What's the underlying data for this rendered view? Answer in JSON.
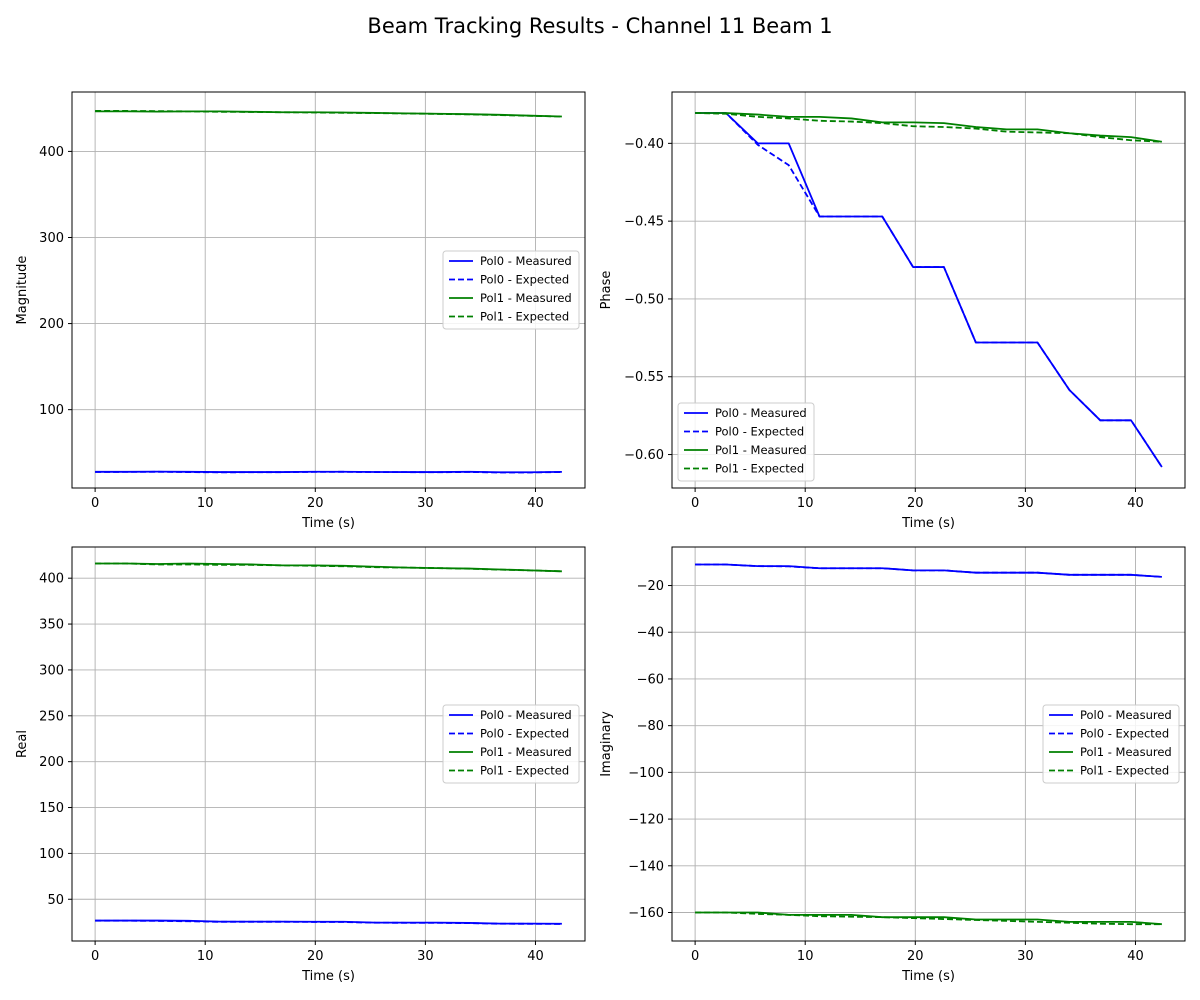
{
  "title": "Beam Tracking Results - Channel 11 Beam 1",
  "series_styles": [
    {
      "name": "Pol0 - Measured",
      "color": "#0000ff",
      "dash": "solid"
    },
    {
      "name": "Pol0 - Expected",
      "color": "#0000ff",
      "dash": "dashed"
    },
    {
      "name": "Pol1 - Measured",
      "color": "#008000",
      "dash": "solid"
    },
    {
      "name": "Pol1 - Expected",
      "color": "#008000",
      "dash": "dashed"
    }
  ],
  "chart_data": [
    {
      "id": "magnitude",
      "type": "line",
      "xlabel": "Time (s)",
      "ylabel": "Magnitude",
      "xlim": [
        -2.1,
        44.5
      ],
      "ylim": [
        9,
        469
      ],
      "xticks": [
        0,
        10,
        20,
        30,
        40
      ],
      "yticks": [
        100,
        200,
        300,
        400
      ],
      "grid": true,
      "legend": "center-right",
      "series": [
        {
          "name": "Pol0 - Measured",
          "x": [
            0,
            2.8,
            5.7,
            8.5,
            11.3,
            14.2,
            17,
            19.8,
            22.6,
            25.5,
            28.3,
            31.1,
            34,
            36.8,
            39.6,
            42.4
          ],
          "y": [
            27.8,
            27.8,
            28,
            27.8,
            27.5,
            27.5,
            27.5,
            27.9,
            27.9,
            27.6,
            27.5,
            27.5,
            27.9,
            27.3,
            27.3,
            27.7
          ]
        },
        {
          "name": "Pol0 - Expected",
          "x": [
            0,
            2.8,
            5.7,
            8.5,
            11.3,
            14.2,
            17,
            19.8,
            22.6,
            25.5,
            28.3,
            31.1,
            34,
            36.8,
            39.6,
            42.4
          ],
          "y": [
            27.6,
            27.7,
            27.8,
            27.5,
            27.2,
            27.3,
            27.4,
            27.7,
            27.8,
            27.5,
            27.4,
            27.3,
            27.6,
            27,
            27.1,
            27.5
          ]
        },
        {
          "name": "Pol1 - Measured",
          "x": [
            0,
            2.8,
            5.7,
            8.5,
            11.3,
            14.2,
            17,
            19.8,
            22.6,
            25.5,
            28.3,
            31.1,
            34,
            36.8,
            39.6,
            42.4
          ],
          "y": [
            446.5,
            446.5,
            446.2,
            446.5,
            446.5,
            446,
            445.5,
            445.5,
            445.2,
            444.7,
            444.2,
            443.7,
            443.2,
            442.5,
            441.5,
            440.5
          ]
        },
        {
          "name": "Pol1 - Expected",
          "x": [
            0,
            2.8,
            5.7,
            8.5,
            11.3,
            14.2,
            17,
            19.8,
            22.6,
            25.5,
            28.3,
            31.1,
            34,
            36.8,
            39.6,
            42.4
          ],
          "y": [
            447,
            447,
            446.8,
            446.5,
            446,
            445.8,
            445.5,
            445.2,
            444.8,
            444.5,
            444,
            443.5,
            443,
            442.2,
            441.3,
            440.5
          ]
        }
      ]
    },
    {
      "id": "phase",
      "type": "line",
      "xlabel": "Time (s)",
      "ylabel": "Phase",
      "xlim": [
        -2.1,
        44.5
      ],
      "ylim": [
        -0.6215,
        -0.367
      ],
      "xticks": [
        0,
        10,
        20,
        30,
        40
      ],
      "yticks": [
        -0.6,
        -0.55,
        -0.5,
        -0.45,
        -0.4
      ],
      "ytick_labels": [
        "−0.60",
        "−0.55",
        "−0.50",
        "−0.45",
        "−0.40"
      ],
      "grid": true,
      "legend": "lower-left",
      "series": [
        {
          "name": "Pol0 - Measured",
          "x": [
            0,
            2.8,
            5.7,
            8.5,
            11.3,
            14.2,
            17,
            19.8,
            22.6,
            25.5,
            28.3,
            31.1,
            34,
            36.8,
            39.6,
            42.4
          ],
          "y": [
            -0.3805,
            -0.3805,
            -0.4,
            -0.4,
            -0.447,
            -0.447,
            -0.447,
            -0.4795,
            -0.4795,
            -0.528,
            -0.528,
            -0.528,
            -0.5585,
            -0.578,
            -0.578,
            -0.608
          ]
        },
        {
          "name": "Pol0 - Expected",
          "x": [
            0,
            2.8,
            5.7,
            8.5,
            11.3,
            14.2,
            17,
            19.8,
            22.6,
            25.5,
            28.3,
            31.1,
            34,
            36.8,
            39.6,
            42.4
          ],
          "y": [
            -0.3805,
            -0.3805,
            -0.401,
            -0.414,
            -0.447,
            -0.447,
            -0.447,
            -0.4795,
            -0.4795,
            -0.528,
            -0.528,
            -0.528,
            -0.5585,
            -0.578,
            -0.578,
            -0.608
          ]
        },
        {
          "name": "Pol1 - Measured",
          "x": [
            0,
            2.8,
            5.7,
            8.5,
            11.3,
            14.2,
            17,
            19.8,
            22.6,
            25.5,
            28.3,
            31.1,
            34,
            36.8,
            39.6,
            42.4
          ],
          "y": [
            -0.3805,
            -0.3805,
            -0.3815,
            -0.383,
            -0.383,
            -0.384,
            -0.3865,
            -0.3865,
            -0.387,
            -0.3895,
            -0.391,
            -0.391,
            -0.3935,
            -0.395,
            -0.396,
            -0.399
          ]
        },
        {
          "name": "Pol1 - Expected",
          "x": [
            0,
            2.8,
            5.7,
            8.5,
            11.3,
            14.2,
            17,
            19.8,
            22.6,
            25.5,
            28.3,
            31.1,
            34,
            36.8,
            39.6,
            42.4
          ],
          "y": [
            -0.3805,
            -0.381,
            -0.383,
            -0.384,
            -0.3855,
            -0.386,
            -0.387,
            -0.389,
            -0.3895,
            -0.3905,
            -0.3925,
            -0.393,
            -0.3935,
            -0.396,
            -0.398,
            -0.399
          ]
        }
      ]
    },
    {
      "id": "real",
      "type": "line",
      "xlabel": "Time (s)",
      "ylabel": "Real",
      "xlim": [
        -2.1,
        44.5
      ],
      "ylim": [
        4.5,
        434
      ],
      "xticks": [
        0,
        10,
        20,
        30,
        40
      ],
      "yticks": [
        50,
        100,
        150,
        200,
        250,
        300,
        350,
        400
      ],
      "grid": true,
      "legend": "center-right",
      "series": [
        {
          "name": "Pol0 - Measured",
          "x": [
            0,
            2.8,
            5.7,
            8.5,
            11.3,
            14.2,
            17,
            19.8,
            22.6,
            25.5,
            28.3,
            31.1,
            34,
            36.8,
            39.6,
            42.4
          ],
          "y": [
            26.8,
            26.8,
            26.8,
            26.5,
            25.6,
            25.6,
            25.6,
            25.5,
            25.5,
            24.5,
            24.5,
            24.5,
            24.2,
            23.4,
            23.4,
            23.3
          ]
        },
        {
          "name": "Pol0 - Expected",
          "x": [
            0,
            2.8,
            5.7,
            8.5,
            11.3,
            14.2,
            17,
            19.8,
            22.6,
            25.5,
            28.3,
            31.1,
            34,
            36.8,
            39.6,
            42.4
          ],
          "y": [
            26.6,
            26.6,
            26.4,
            26,
            25.4,
            25.4,
            25.4,
            25.3,
            25.2,
            24.4,
            24.3,
            24.3,
            24,
            23.3,
            23.2,
            23.1
          ]
        },
        {
          "name": "Pol1 - Measured",
          "x": [
            0,
            2.8,
            5.7,
            8.5,
            11.3,
            14.2,
            17,
            19.8,
            22.6,
            25.5,
            28.3,
            31.1,
            34,
            36.8,
            39.6,
            42.4
          ],
          "y": [
            416,
            416,
            415.5,
            416,
            415.5,
            415,
            414,
            414,
            413.5,
            412.5,
            411.5,
            411,
            410.5,
            409.5,
            408.5,
            407.5
          ]
        },
        {
          "name": "Pol1 - Expected",
          "x": [
            0,
            2.8,
            5.7,
            8.5,
            11.3,
            14.2,
            17,
            19.8,
            22.6,
            25.5,
            28.3,
            31.1,
            34,
            36.8,
            39.6,
            42.4
          ],
          "y": [
            416,
            416,
            415,
            415,
            414.5,
            414.5,
            414,
            413.5,
            413,
            412,
            411.5,
            411,
            410.3,
            409.3,
            408.5,
            407.5
          ]
        }
      ]
    },
    {
      "id": "imaginary",
      "type": "line",
      "xlabel": "Time (s)",
      "ylabel": "Imaginary",
      "xlim": [
        -2.1,
        44.5
      ],
      "ylim": [
        -172.2,
        -3.5
      ],
      "xticks": [
        0,
        10,
        20,
        30,
        40
      ],
      "yticks": [
        -160,
        -140,
        -120,
        -100,
        -80,
        -60,
        -40,
        -20
      ],
      "ytick_labels": [
        "−160",
        "−140",
        "−120",
        "−100",
        "−80",
        "−60",
        "−40",
        "−20"
      ],
      "grid": true,
      "legend": "center-right",
      "series": [
        {
          "name": "Pol0 - Measured",
          "x": [
            0,
            2.8,
            5.7,
            8.5,
            11.3,
            14.2,
            17,
            19.8,
            22.6,
            25.5,
            28.3,
            31.1,
            34,
            36.8,
            39.6,
            42.4
          ],
          "y": [
            -11,
            -11,
            -11.7,
            -11.7,
            -12.6,
            -12.6,
            -12.6,
            -13.5,
            -13.5,
            -14.5,
            -14.5,
            -14.5,
            -15.4,
            -15.4,
            -15.4,
            -16.3
          ]
        },
        {
          "name": "Pol0 - Expected",
          "x": [
            0,
            2.8,
            5.7,
            8.5,
            11.3,
            14.2,
            17,
            19.8,
            22.6,
            25.5,
            28.3,
            31.1,
            34,
            36.8,
            39.6,
            42.4
          ],
          "y": [
            -11,
            -11,
            -11.7,
            -11.8,
            -12.6,
            -12.6,
            -12.6,
            -13.5,
            -13.5,
            -14.5,
            -14.5,
            -14.5,
            -15.4,
            -15.4,
            -15.4,
            -16.3
          ]
        },
        {
          "name": "Pol1 - Measured",
          "x": [
            0,
            2.8,
            5.7,
            8.5,
            11.3,
            14.2,
            17,
            19.8,
            22.6,
            25.5,
            28.3,
            31.1,
            34,
            36.8,
            39.6,
            42.4
          ],
          "y": [
            -160,
            -160,
            -160,
            -161,
            -161,
            -161,
            -162,
            -162,
            -162,
            -163,
            -163,
            -163,
            -164,
            -164,
            -164,
            -165
          ]
        },
        {
          "name": "Pol1 - Expected",
          "x": [
            0,
            2.8,
            5.7,
            8.5,
            11.3,
            14.2,
            17,
            19.8,
            22.6,
            25.5,
            28.3,
            31.1,
            34,
            36.8,
            39.6,
            42.4
          ],
          "y": [
            -160,
            -160,
            -160.6,
            -161,
            -161.6,
            -161.8,
            -162,
            -162.4,
            -162.8,
            -163.2,
            -163.6,
            -164,
            -164.4,
            -164.8,
            -165,
            -165
          ]
        }
      ]
    }
  ]
}
